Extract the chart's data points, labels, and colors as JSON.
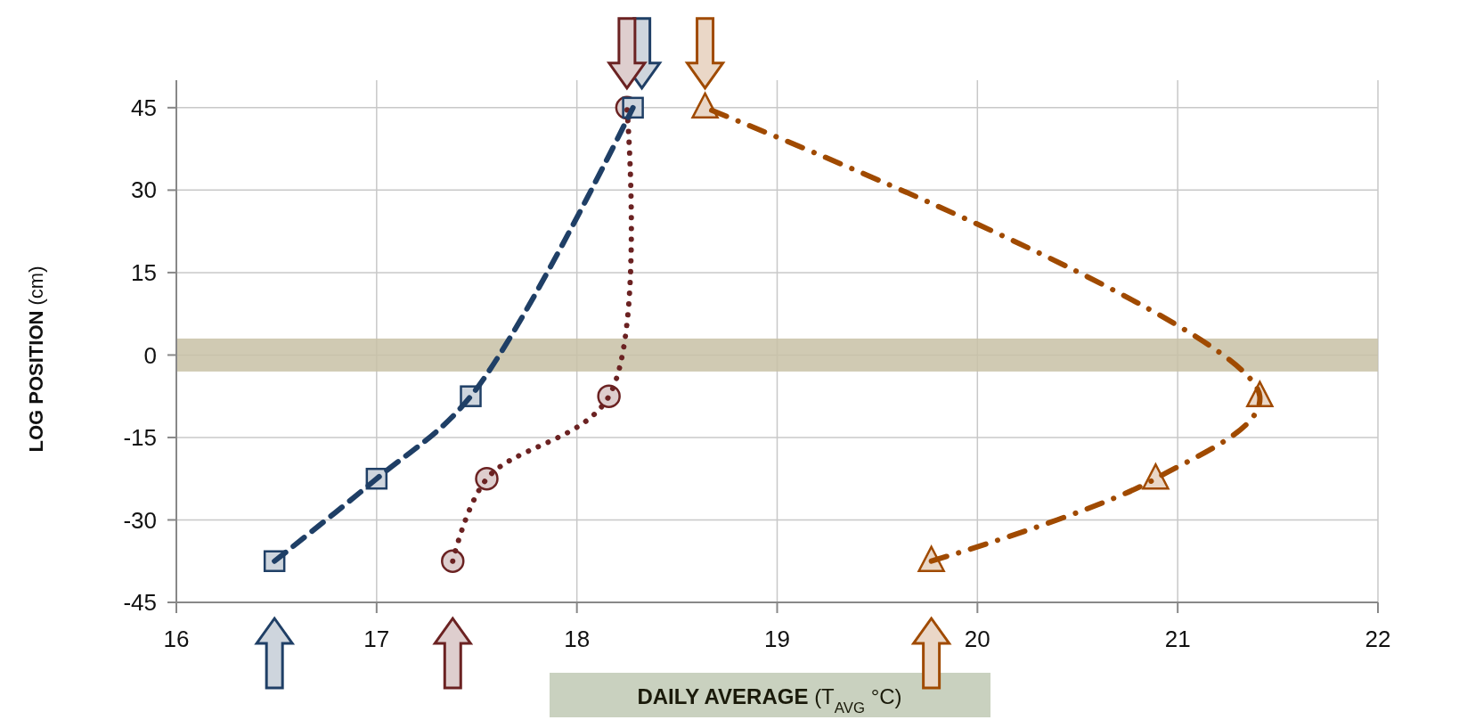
{
  "chart_data": {
    "type": "line",
    "xlabel": "DAILY AVERAGE (T$_{AVG}$ °C)",
    "ylabel": "LOG POSITION (cm)",
    "xlim": [
      16,
      22
    ],
    "ylim": [
      -45,
      50
    ],
    "xticks": [
      16,
      17,
      18,
      19,
      20,
      21,
      22
    ],
    "yticks": [
      -45,
      -30,
      -15,
      0,
      15,
      30,
      45
    ],
    "grid": true,
    "series": [
      {
        "color": "#1f3f66",
        "marker": "square",
        "line_style": "dashed",
        "x": [
          16.49,
          17.0,
          17.47,
          18.28
        ],
        "values": [
          -37.5,
          -22.5,
          -7.5,
          45
        ]
      },
      {
        "color": "#6b2222",
        "marker": "circle",
        "line_style": "dotted",
        "x": [
          17.38,
          17.55,
          18.16,
          18.25
        ],
        "values": [
          -37.5,
          -22.5,
          -7.5,
          45
        ]
      },
      {
        "color": "#a04a00",
        "marker": "triangle",
        "line_style": "dashdot",
        "x": [
          19.77,
          20.89,
          21.41,
          18.64
        ],
        "values": [
          -37.5,
          -22.5,
          -7.5,
          45
        ]
      }
    ],
    "bands": [
      {
        "axis": "y",
        "from": -3,
        "to": 3,
        "color": "#c8c1a6"
      }
    ]
  }
}
